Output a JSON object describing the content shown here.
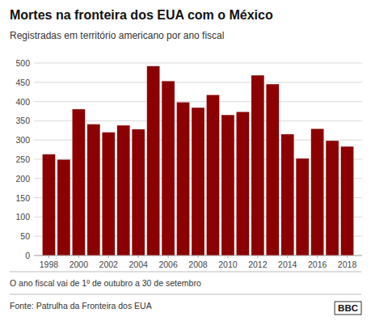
{
  "chart_data": {
    "type": "bar",
    "title": "Mortes na fronteira dos EUA com o México",
    "subtitle": "Registradas em território americano por ano fiscal",
    "annotations": [
      "O ano fiscal vai de 1º de outubro a 30 de setembro",
      "Fonte: Patrulha da Fronteira dos EUA"
    ],
    "logo": "BBC",
    "x": [
      1998,
      1999,
      2000,
      2001,
      2002,
      2003,
      2004,
      2005,
      2006,
      2007,
      2008,
      2009,
      2010,
      2011,
      2012,
      2013,
      2014,
      2015,
      2016,
      2017,
      2018
    ],
    "values": [
      263,
      249,
      380,
      341,
      320,
      338,
      328,
      492,
      453,
      398,
      384,
      417,
      365,
      373,
      468,
      445,
      315,
      252,
      329,
      298,
      283
    ],
    "color": "#8B0000",
    "xlim": [
      1997,
      2019
    ],
    "xticks": [
      1998,
      2000,
      2002,
      2004,
      2006,
      2008,
      2010,
      2012,
      2014,
      2016,
      2018
    ],
    "ylim": [
      0,
      500
    ],
    "yticks": [
      0,
      50,
      100,
      150,
      200,
      250,
      300,
      350,
      400,
      450,
      500
    ],
    "grid": true
  }
}
